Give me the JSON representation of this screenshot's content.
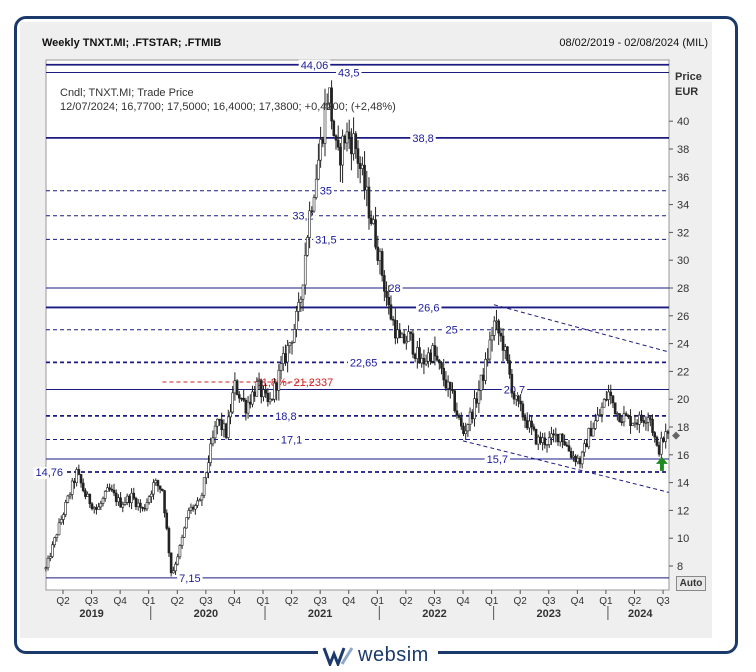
{
  "header": {
    "title": "Weekly TNXT.MI; .FTSTAR; .FTMIB",
    "date_range": "08/02/2019 - 02/08/2024 (MIL)"
  },
  "legend": {
    "line1": "Cndl; TNXT.MI; Trade Price",
    "line2": "12/07/2024; 16,7700; 17,5000; 16,4000; 17,3800; +0,4200; (+2,48%)"
  },
  "price_axis": {
    "title": "Price",
    "unit": "EUR"
  },
  "auto_button": "Auto",
  "branding": {
    "name": "websim"
  },
  "chart_data": {
    "type": "candlestick",
    "series_name": "TNXT.MI",
    "yaxis": {
      "min": 7,
      "max": 44.5,
      "ticks": [
        8,
        10,
        12,
        14,
        16,
        18,
        20,
        22,
        24,
        26,
        28,
        30,
        32,
        34,
        36,
        38,
        40
      ]
    },
    "xaxis": {
      "quarter_ticks": [
        {
          "label": "Q2",
          "t": 2019.25
        },
        {
          "label": "Q3",
          "t": 2019.5
        },
        {
          "label": "Q4",
          "t": 2019.75
        },
        {
          "label": "Q1",
          "t": 2020.0
        },
        {
          "label": "Q2",
          "t": 2020.25
        },
        {
          "label": "Q3",
          "t": 2020.5
        },
        {
          "label": "Q4",
          "t": 2020.75
        },
        {
          "label": "Q1",
          "t": 2021.0
        },
        {
          "label": "Q2",
          "t": 2021.25
        },
        {
          "label": "Q3",
          "t": 2021.5
        },
        {
          "label": "Q4",
          "t": 2021.75
        },
        {
          "label": "Q1",
          "t": 2022.0
        },
        {
          "label": "Q2",
          "t": 2022.25
        },
        {
          "label": "Q3",
          "t": 2022.5
        },
        {
          "label": "Q4",
          "t": 2022.75
        },
        {
          "label": "Q1",
          "t": 2023.0
        },
        {
          "label": "Q2",
          "t": 2023.25
        },
        {
          "label": "Q3",
          "t": 2023.5
        },
        {
          "label": "Q4",
          "t": 2023.75
        },
        {
          "label": "Q1",
          "t": 2024.0
        },
        {
          "label": "Q2",
          "t": 2024.25
        },
        {
          "label": "Q3",
          "t": 2024.5
        }
      ],
      "years": [
        {
          "label": "2019",
          "t": 2019.5
        },
        {
          "label": "2020",
          "t": 2020.5
        },
        {
          "label": "2021",
          "t": 2021.5
        },
        {
          "label": "2022",
          "t": 2022.5
        },
        {
          "label": "2023",
          "t": 2023.5
        },
        {
          "label": "2024",
          "t": 2024.3
        }
      ],
      "year_separators": [
        2020.0,
        2021.0,
        2022.0,
        2023.0,
        2024.0
      ],
      "t_start": 2019.1,
      "t_end": 2024.55
    },
    "price_path": [
      [
        2019.1,
        7.8
      ],
      [
        2019.2,
        10.5
      ],
      [
        2019.3,
        13.0
      ],
      [
        2019.37,
        14.7
      ],
      [
        2019.45,
        13.0
      ],
      [
        2019.55,
        12.0
      ],
      [
        2019.65,
        13.5
      ],
      [
        2019.75,
        12.5
      ],
      [
        2019.85,
        13.0
      ],
      [
        2019.95,
        12.0
      ],
      [
        2020.05,
        14.0
      ],
      [
        2020.12,
        13.5
      ],
      [
        2020.2,
        7.3
      ],
      [
        2020.28,
        9.5
      ],
      [
        2020.35,
        12.0
      ],
      [
        2020.45,
        12.5
      ],
      [
        2020.52,
        15.5
      ],
      [
        2020.6,
        18.5
      ],
      [
        2020.68,
        17.5
      ],
      [
        2020.75,
        21.0
      ],
      [
        2020.85,
        19.5
      ],
      [
        2020.95,
        21.0
      ],
      [
        2021.05,
        19.5
      ],
      [
        2021.15,
        22.0
      ],
      [
        2021.25,
        24.5
      ],
      [
        2021.32,
        26.5
      ],
      [
        2021.4,
        33.0
      ],
      [
        2021.5,
        38.0
      ],
      [
        2021.57,
        42.5
      ],
      [
        2021.65,
        37.0
      ],
      [
        2021.72,
        39.0
      ],
      [
        2021.8,
        38.5
      ],
      [
        2021.88,
        35.5
      ],
      [
        2022.0,
        31.0
      ],
      [
        2022.1,
        26.5
      ],
      [
        2022.2,
        24.0
      ],
      [
        2022.28,
        24.5
      ],
      [
        2022.38,
        22.5
      ],
      [
        2022.48,
        23.5
      ],
      [
        2022.58,
        21.5
      ],
      [
        2022.66,
        20.0
      ],
      [
        2022.75,
        17.5
      ],
      [
        2022.85,
        19.5
      ],
      [
        2022.95,
        22.5
      ],
      [
        2023.02,
        25.5
      ],
      [
        2023.1,
        24.0
      ],
      [
        2023.2,
        20.0
      ],
      [
        2023.3,
        18.5
      ],
      [
        2023.4,
        17.0
      ],
      [
        2023.5,
        17.0
      ],
      [
        2023.6,
        17.5
      ],
      [
        2023.7,
        16.0
      ],
      [
        2023.78,
        15.5
      ],
      [
        2023.85,
        17.5
      ],
      [
        2023.95,
        19.0
      ],
      [
        2024.02,
        20.5
      ],
      [
        2024.1,
        19.0
      ],
      [
        2024.2,
        18.5
      ],
      [
        2024.3,
        18.5
      ],
      [
        2024.38,
        19.0
      ],
      [
        2024.45,
        16.2
      ],
      [
        2024.52,
        17.4
      ]
    ],
    "horizontal_levels": [
      {
        "value": 44.06,
        "label": "44,06",
        "style": "solid",
        "weight": "bold",
        "label_t": 2021.45
      },
      {
        "value": 43.5,
        "label": "43,5",
        "style": "solid",
        "weight": "normal",
        "label_t": 2021.75
      },
      {
        "value": 38.8,
        "label": "38,8",
        "style": "solid",
        "weight": "bold",
        "label_t": 2022.4
      },
      {
        "value": 35,
        "label": "35",
        "style": "dashed",
        "weight": "normal",
        "label_t": 2021.55
      },
      {
        "value": 33.2,
        "label": "33,2",
        "style": "dashed",
        "weight": "normal",
        "label_t": 2021.35
      },
      {
        "value": 31.5,
        "label": "31,5",
        "style": "dashed",
        "weight": "normal",
        "label_t": 2021.55
      },
      {
        "value": 28,
        "label": "28",
        "style": "solid",
        "weight": "normal",
        "label_t": 2022.15
      },
      {
        "value": 26.6,
        "label": "26,6",
        "style": "solid",
        "weight": "bold",
        "label_t": 2022.45
      },
      {
        "value": 25,
        "label": "25",
        "style": "dashed",
        "weight": "normal",
        "label_t": 2022.65
      },
      {
        "value": 22.65,
        "label": "22,65",
        "style": "dashed",
        "weight": "bold",
        "label_t": 2021.88
      },
      {
        "value": 20.7,
        "label": "20,7",
        "style": "solid",
        "weight": "normal",
        "label_t": 2023.2
      },
      {
        "value": 18.8,
        "label": "18,8",
        "style": "dashed",
        "weight": "bold",
        "label_t": 2021.2
      },
      {
        "value": 17.1,
        "label": "17,1",
        "style": "dashed",
        "weight": "normal",
        "label_t": 2021.25
      },
      {
        "value": 15.7,
        "label": "15,7",
        "style": "solid",
        "weight": "normal",
        "label_t": 2023.05
      },
      {
        "value": 14.76,
        "label": "14,76",
        "style": "dashed",
        "weight": "bold",
        "label_t": 2019.13
      },
      {
        "value": 7.15,
        "label": "7,15",
        "style": "solid",
        "weight": "normal",
        "label_t": 2020.36
      }
    ],
    "fibonacci": {
      "label": "61,8%- 21,2337",
      "value": 21.2337,
      "t_start": 2020.12,
      "t_end": 2021.45,
      "color": "#cc2222"
    },
    "trendlines": [
      {
        "t1": 2023.02,
        "v1": 26.8,
        "t2": 2024.55,
        "v2": 23.4
      },
      {
        "t1": 2022.75,
        "v1": 17.0,
        "t2": 2024.55,
        "v2": 13.3
      }
    ],
    "last_price": 17.38
  }
}
